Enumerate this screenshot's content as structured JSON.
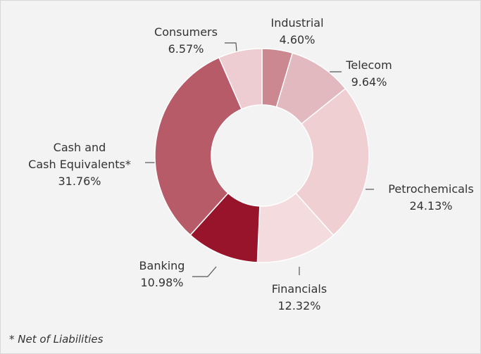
{
  "chart_data": {
    "type": "donut",
    "categories": [
      "Industrial",
      "Telecom",
      "Petrochemicals",
      "Financials",
      "Banking",
      "Cash and\nCash Equivalents*",
      "Consumers"
    ],
    "values": [
      4.6,
      9.64,
      24.13,
      12.32,
      10.98,
      31.76,
      6.57
    ],
    "value_labels": [
      "4.60%",
      "9.64%",
      "24.13%",
      "12.32%",
      "10.98%",
      "31.76%",
      "6.57%"
    ],
    "colors": [
      "#cc8890",
      "#e1b9bf",
      "#f0cfd3",
      "#f3dbde",
      "#97142a",
      "#b85b69",
      "#edcdd1"
    ],
    "annotation": "* Net of Liabilities"
  }
}
